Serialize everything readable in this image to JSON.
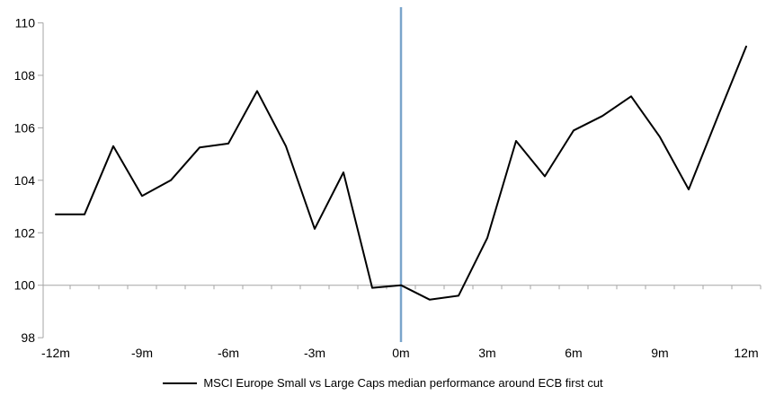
{
  "chart_data": {
    "type": "line",
    "title": "",
    "legend_position": "bottom",
    "grid": "baseline-only",
    "x_months": [
      -12,
      -11,
      -10,
      -9,
      -8,
      -7,
      -6,
      -5,
      -4,
      -3,
      -2,
      -1,
      0,
      1,
      2,
      3,
      4,
      5,
      6,
      7,
      8,
      9,
      10,
      11,
      12
    ],
    "series": [
      {
        "name": "MSCI Europe Small vs Large Caps median performance around ECB first cut",
        "values": [
          102.7,
          102.7,
          105.3,
          103.4,
          104.0,
          105.25,
          105.4,
          107.4,
          105.3,
          102.15,
          104.3,
          99.9,
          100.0,
          99.45,
          99.6,
          101.8,
          105.5,
          104.15,
          105.9,
          106.45,
          107.2,
          105.65,
          103.65,
          106.4,
          109.1
        ]
      }
    ],
    "x_tick_months": [
      -12,
      -9,
      -6,
      -3,
      0,
      3,
      6,
      9,
      12
    ],
    "x_tick_labels": [
      "-12m",
      "-9m",
      "-6m",
      "-3m",
      "0m",
      "3m",
      "6m",
      "9m",
      "12m"
    ],
    "y_ticks": [
      98,
      100,
      102,
      104,
      106,
      108,
      110
    ],
    "y_tick_labels": [
      "98",
      "100",
      "102",
      "104",
      "106",
      "108",
      "110"
    ],
    "ylim": [
      98,
      110
    ],
    "xlim_months": [
      -12.5,
      12.5
    ],
    "baseline_value": 100,
    "event_line_month": 0,
    "colors": {
      "series_line": "#000000",
      "event_line": "#7aa4cb",
      "axis": "#a6a6a6",
      "tick_label": "#000000"
    }
  }
}
